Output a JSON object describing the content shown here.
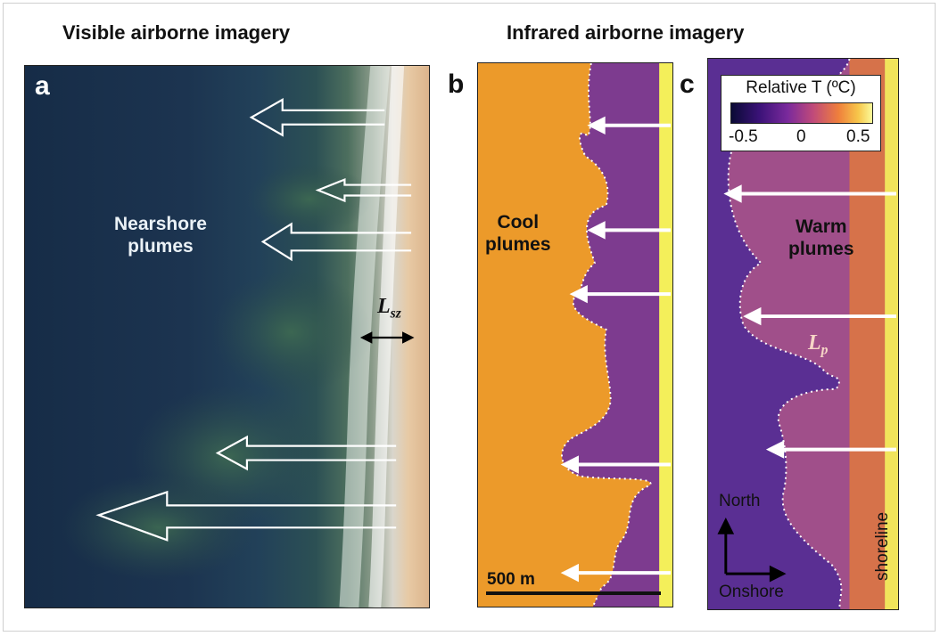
{
  "headings": {
    "visible": "Visible airborne imagery",
    "infrared": "Infrared airborne imagery"
  },
  "panels": {
    "a": {
      "letter": "a",
      "label": "Nearshore\nplumes",
      "lsz": {
        "base": "L",
        "sub": "sz"
      }
    },
    "b": {
      "letter": "b",
      "label": "Cool\nplumes",
      "scale_bar_label": "500 m"
    },
    "c": {
      "letter": "c",
      "label": "Warm\nplumes",
      "lp": {
        "base": "L",
        "sub": "p"
      },
      "colorbar": {
        "title": "Relative T (ºC)",
        "ticks": [
          "-0.5",
          "0",
          "0.5"
        ],
        "colors": [
          "#0a0a35",
          "#3b1278",
          "#7a2a9c",
          "#c04a7a",
          "#ef7f3c",
          "#f7c64a",
          "#fbfa9a"
        ]
      },
      "compass": {
        "north": "North",
        "onshore": "Onshore"
      },
      "shoreline_label": "shoreline"
    }
  },
  "colors": {
    "ocean": "#1c3450",
    "cool_background": "#ec9a2a",
    "warm_background": "#6b3fa3",
    "arrow_white": "#ffffff"
  }
}
